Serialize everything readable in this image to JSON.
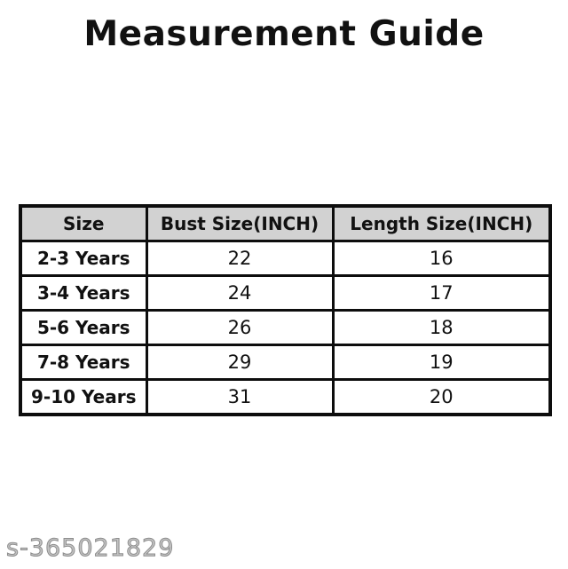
{
  "page": {
    "title": "Measurement Guide",
    "watermark": "s-365021829"
  },
  "chart_data": {
    "type": "table",
    "title": "Measurement Guide",
    "columns": [
      "Size",
      "Bust Size(INCH)",
      "Length Size(INCH)"
    ],
    "rows": [
      [
        "2-3 Years",
        "22",
        "16"
      ],
      [
        "3-4 Years",
        "24",
        "17"
      ],
      [
        "5-6 Years",
        "26",
        "18"
      ],
      [
        "7-8 Years",
        "29",
        "19"
      ],
      [
        "9-10 Years",
        "31",
        "20"
      ]
    ]
  },
  "colors": {
    "background": "#ffffff",
    "header_bg": "#d2d2d2",
    "border": "#0d0d0d",
    "text": "#111111",
    "watermark": "#8d8d8d"
  }
}
